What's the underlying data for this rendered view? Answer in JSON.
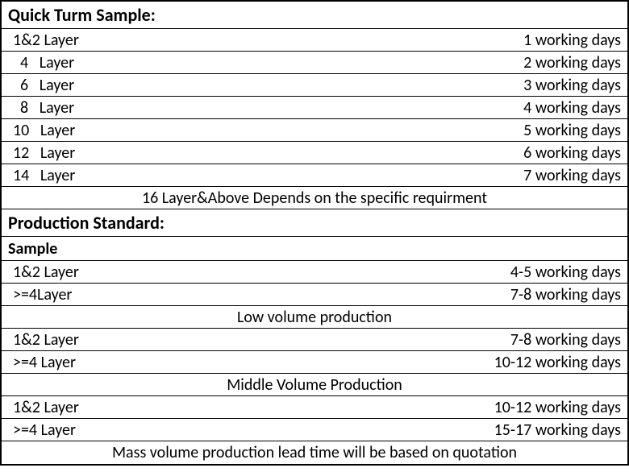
{
  "table": {
    "sections": [
      {
        "header": "Quick  Turm  Sample:",
        "rows": [
          {
            "label": "1&2 Layer",
            "value": "1 working days"
          },
          {
            "label": "  4   Layer",
            "value": "2 working days"
          },
          {
            "label": "  6   Layer",
            "value": "3 working days"
          },
          {
            "label": "  8   Layer",
            "value": "4 working days"
          },
          {
            "label": "10   Layer",
            "value": "5 working days"
          },
          {
            "label": "12   Layer",
            "value": "6 working days"
          },
          {
            "label": "14   Layer",
            "value": "7 working days"
          }
        ],
        "footer": "16 Layer&Above Depends on the specific requirment"
      },
      {
        "header": "Production Standard:",
        "subsections": [
          {
            "subheader": "Sample",
            "rows": [
              {
                "label": "1&2 Layer",
                "value": "4-5 working days"
              },
              {
                "label": ">=4Layer",
                "value": "7-8 working days"
              }
            ]
          },
          {
            "center_title": "Low volume production",
            "rows": [
              {
                "label": "1&2 Layer",
                "value": "7-8 working days"
              },
              {
                "label": ">=4 Layer",
                "value": "10-12 working days"
              }
            ]
          },
          {
            "center_title": "Middle Volume Production",
            "rows": [
              {
                "label": "1&2 Layer",
                "value": "10-12 working days"
              },
              {
                "label": ">=4 Layer",
                "value": "15-17 working days"
              }
            ]
          }
        ],
        "footer": "Mass volume production lead time will be based on quotation"
      }
    ]
  },
  "styling": {
    "border_color": "#000000",
    "background_color": "#ffffff",
    "text_color": "#000000",
    "header_fontsize": 22,
    "body_fontsize": 20,
    "font_family": "Calibri, Arial, sans-serif"
  }
}
